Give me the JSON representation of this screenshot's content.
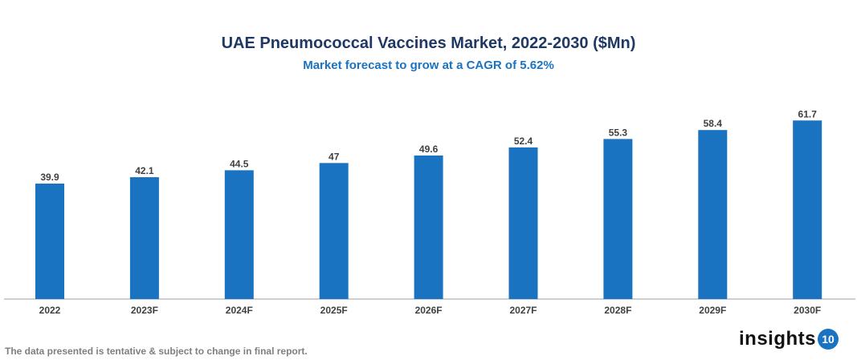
{
  "chart_data": {
    "type": "bar",
    "title": "UAE Pneumococcal Vaccines Market, 2022-2030 ($Mn)",
    "subtitle": "Market forecast to grow at a CAGR of 5.62%",
    "categories": [
      "2022",
      "2023F",
      "2024F",
      "2025F",
      "2026F",
      "2027F",
      "2028F",
      "2029F",
      "2030F"
    ],
    "values": [
      39.9,
      42.1,
      44.5,
      47,
      49.6,
      52.4,
      55.3,
      58.4,
      61.7
    ],
    "xlabel": "",
    "ylabel": "",
    "ylim": [
      0,
      65
    ],
    "grid": false,
    "data_labels": true,
    "bar_color": "#1a73c0"
  },
  "footnote": "The data presented is tentative & subject to change in final report.",
  "logo": {
    "text": "insights",
    "badge": "10"
  }
}
